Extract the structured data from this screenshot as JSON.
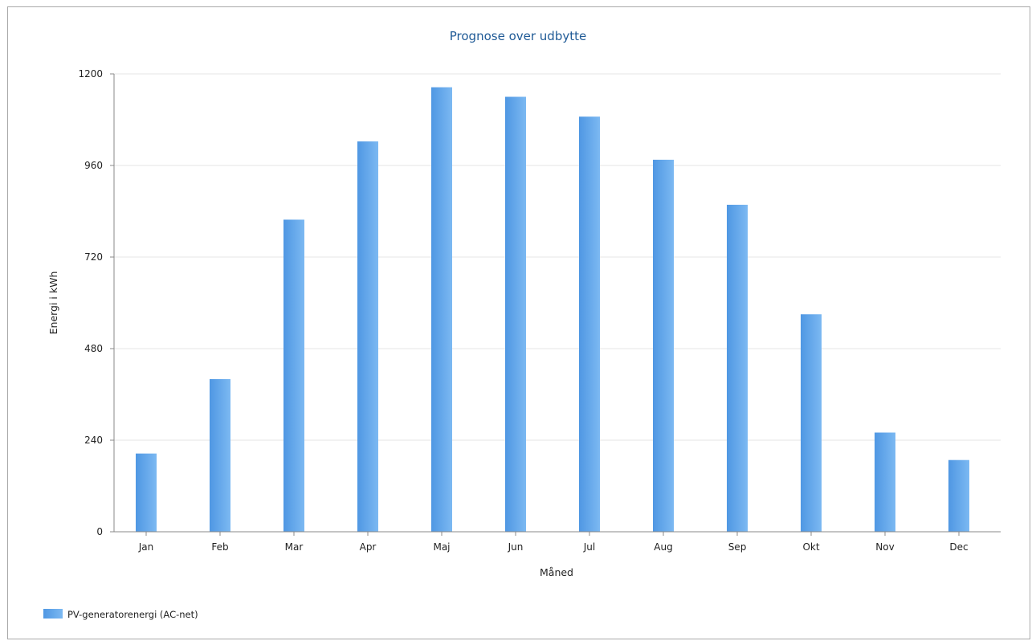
{
  "chart_data": {
    "type": "bar",
    "title": "Prognose over udbytte",
    "xlabel": "Måned",
    "ylabel": "Energi i kWh",
    "categories": [
      "Jan",
      "Feb",
      "Mar",
      "Apr",
      "Maj",
      "Jun",
      "Jul",
      "Aug",
      "Sep",
      "Okt",
      "Nov",
      "Dec"
    ],
    "series": [
      {
        "name": "PV-generatorenergi (AC-net)",
        "values": [
          205,
          400,
          818,
          1023,
          1165,
          1140,
          1088,
          975,
          857,
          570,
          260,
          188
        ]
      }
    ],
    "ylim": [
      0,
      1200
    ],
    "yticks": [
      "0",
      "240",
      "480",
      "720",
      "960",
      "1200"
    ],
    "grid": true,
    "legend_position": "bottom-left"
  },
  "colors": {
    "bar_dark": "#4f97e3",
    "bar_light": "#7cb9f2",
    "title": "#1f5a96",
    "grid": "#e6e6e6",
    "axis": "#888888"
  }
}
